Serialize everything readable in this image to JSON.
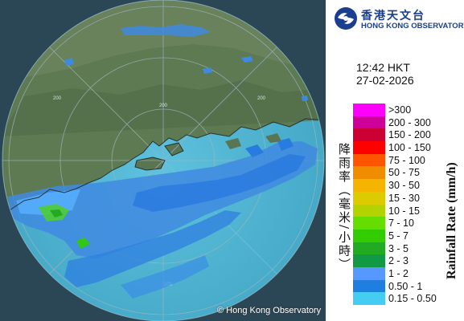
{
  "organization": {
    "name_zh": "香港天文台",
    "name_en": "HONG KONG OBSERVATORY"
  },
  "timestamp": {
    "time": "12:42 HKT",
    "date": "27-02-2026"
  },
  "map": {
    "copyright": "© Hong Kong Observatory",
    "range_ring_labels": [
      "200",
      "200",
      "200",
      "200"
    ]
  },
  "legend": {
    "unit_zh": "降雨率（毫米/小時）",
    "unit_en": "Rainfall Rate (mm/h)",
    "items": [
      {
        "label": ">300",
        "color": "#ff00ff"
      },
      {
        "label": "200 - 300",
        "color": "#cc0099"
      },
      {
        "label": "150 - 200",
        "color": "#cc0033"
      },
      {
        "label": "100 - 150",
        "color": "#ff0000"
      },
      {
        "label": "75 - 100",
        "color": "#ff5500"
      },
      {
        "label": "50 - 75",
        "color": "#f08c00"
      },
      {
        "label": "30 - 50",
        "color": "#f5b400"
      },
      {
        "label": "15 - 30",
        "color": "#dccb00"
      },
      {
        "label": "10 - 15",
        "color": "#b4d200"
      },
      {
        "label": "7 - 10",
        "color": "#66dd00"
      },
      {
        "label": "5 - 7",
        "color": "#33cc00"
      },
      {
        "label": "3 - 5",
        "color": "#22aa22"
      },
      {
        "label": "2 - 3",
        "color": "#119944"
      },
      {
        "label": "1 - 2",
        "color": "#5599ff"
      },
      {
        "label": "0.50 - 1",
        "color": "#1e7fe0"
      },
      {
        "label": "0.15 - 0.50",
        "color": "#44ccf2"
      }
    ]
  }
}
